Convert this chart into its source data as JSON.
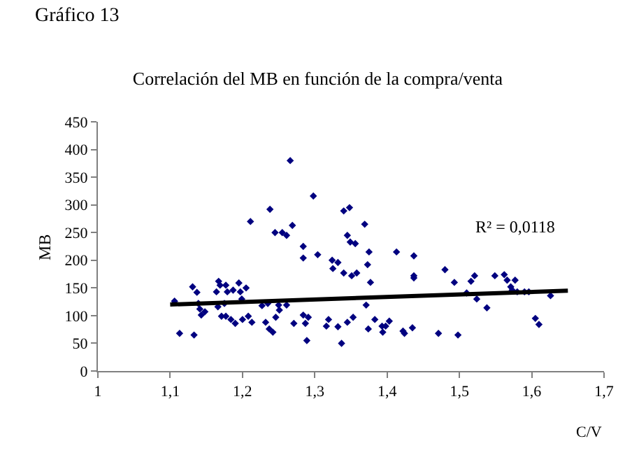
{
  "chart_data": {
    "type": "scatter",
    "title": "Correlación del MB en función de la compra/venta",
    "xlabel": "C/V",
    "ylabel": "MB",
    "xlim": [
      1,
      1.7
    ],
    "xticks": [
      1,
      {
        "value": 1.1,
        "label": "1,1"
      },
      {
        "value": 1.2,
        "label": "1,2"
      },
      {
        "value": 1.3,
        "label": "1,3"
      },
      {
        "value": 1.4,
        "label": "1,4"
      },
      {
        "value": 1.5,
        "label": "1,5"
      },
      {
        "value": 1.6,
        "label": "1,6"
      },
      {
        "value": 1.7,
        "label": "1,7"
      }
    ],
    "ylim": [
      0,
      450
    ],
    "yticks": [
      0,
      50,
      100,
      150,
      200,
      250,
      300,
      350,
      400,
      450
    ],
    "marker": "diamond",
    "annotations": [
      "Gráfico 13",
      "R² = 0,0118"
    ],
    "series": [
      {
        "color": "#000080",
        "x": [
          1.106,
          1.113,
          1.133,
          1.131,
          1.137,
          1.139,
          1.141,
          1.143,
          1.148,
          1.164,
          1.167,
          1.169,
          1.166,
          1.171,
          1.177,
          1.179,
          1.175,
          1.177,
          1.184,
          1.187,
          1.19,
          1.195,
          1.197,
          1.199,
          1.2,
          1.205,
          1.208,
          1.213,
          1.211,
          1.227,
          1.232,
          1.235,
          1.238,
          1.237,
          1.242,
          1.245,
          1.246,
          1.25,
          1.251,
          1.255,
          1.261,
          1.261,
          1.266,
          1.269,
          1.271,
          1.284,
          1.284,
          1.284,
          1.287,
          1.289,
          1.291,
          1.298,
          1.304,
          1.316,
          1.319,
          1.324,
          1.325,
          1.332,
          1.332,
          1.337,
          1.34,
          1.34,
          1.345,
          1.345,
          1.348,
          1.349,
          1.351,
          1.353,
          1.356,
          1.358,
          1.369,
          1.371,
          1.373,
          1.374,
          1.375,
          1.377,
          1.383,
          1.393,
          1.394,
          1.398,
          1.403,
          1.413,
          1.422,
          1.424,
          1.435,
          1.437,
          1.437,
          1.437,
          1.471,
          1.48,
          1.493,
          1.498,
          1.51,
          1.516,
          1.521,
          1.524,
          1.538,
          1.549,
          1.562,
          1.566,
          1.571,
          1.573,
          1.577,
          1.58,
          1.59,
          1.596,
          1.605,
          1.61,
          1.626
        ],
        "values": [
          126,
          68,
          65,
          152,
          142,
          122,
          112,
          101,
          107,
          143,
          162,
          155,
          116,
          99,
          155,
          143,
          122,
          99,
          93,
          146,
          86,
          159,
          143,
          130,
          93,
          150,
          99,
          88,
          270,
          118,
          88,
          122,
          292,
          76,
          70,
          250,
          97,
          119,
          110,
          250,
          245,
          119,
          380,
          263,
          86,
          225,
          204,
          101,
          86,
          55,
          97,
          316,
          210,
          81,
          93,
          200,
          185,
          196,
          80,
          50,
          289,
          177,
          88,
          245,
          295,
          233,
          172,
          97,
          230,
          177,
          265,
          119,
          192,
          76,
          215,
          160,
          93,
          81,
          70,
          81,
          90,
          215,
          72,
          68,
          78,
          208,
          172,
          168,
          68,
          183,
          160,
          65,
          141,
          162,
          172,
          130,
          114,
          172,
          174,
          164,
          152,
          146,
          164,
          143,
          143,
          143,
          95,
          84,
          136
        ]
      },
      {
        "type": "line",
        "color": "#000000",
        "marker": "none",
        "line_style": "solid",
        "x": [
          1.1,
          1.65
        ],
        "values": [
          120,
          145
        ]
      }
    ]
  }
}
